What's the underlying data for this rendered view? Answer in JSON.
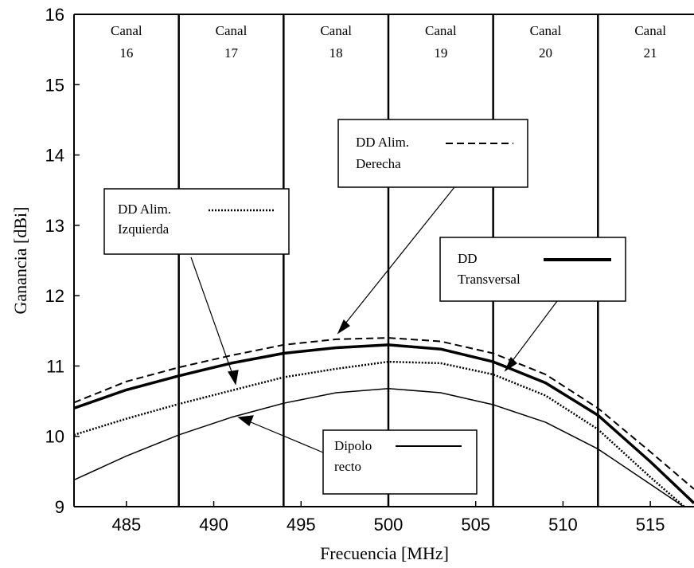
{
  "chart_data": {
    "type": "line",
    "title": "",
    "xlabel": "Frecuencia [MHz]",
    "ylabel": "Ganancia [dBi]",
    "xlim": [
      482,
      517.5
    ],
    "ylim": [
      9,
      16
    ],
    "xticks": [
      485,
      490,
      495,
      500,
      505,
      510,
      515
    ],
    "yticks": [
      9,
      10,
      11,
      12,
      13,
      14,
      15,
      16
    ],
    "grid": false,
    "channel_boundaries_mhz": [
      488,
      494,
      500,
      506,
      512
    ],
    "channels": [
      {
        "label": "Canal",
        "number": "16",
        "center_mhz": 485
      },
      {
        "label": "Canal",
        "number": "17",
        "center_mhz": 491
      },
      {
        "label": "Canal",
        "number": "18",
        "center_mhz": 497
      },
      {
        "label": "Canal",
        "number": "19",
        "center_mhz": 503
      },
      {
        "label": "Canal",
        "number": "20",
        "center_mhz": 509
      },
      {
        "label": "Canal",
        "number": "21",
        "center_mhz": 515
      }
    ],
    "series": [
      {
        "name": "DD Alim. Derecha",
        "style": "dashed",
        "x": [
          482,
          485,
          488,
          491,
          494,
          497,
          500,
          503,
          506,
          509,
          512,
          515,
          517.5
        ],
        "y": [
          10.48,
          10.78,
          10.98,
          11.15,
          11.3,
          11.38,
          11.4,
          11.35,
          11.18,
          10.88,
          10.4,
          9.78,
          9.25
        ]
      },
      {
        "name": "DD Transversal",
        "style": "thick",
        "x": [
          482,
          485,
          488,
          491,
          494,
          497,
          500,
          503,
          506,
          509,
          512,
          515,
          517.5
        ],
        "y": [
          10.4,
          10.66,
          10.86,
          11.04,
          11.18,
          11.26,
          11.3,
          11.24,
          11.06,
          10.76,
          10.3,
          9.64,
          9.05
        ]
      },
      {
        "name": "DD Alim. Izquierda",
        "style": "dotted",
        "x": [
          482,
          485,
          488,
          491,
          494,
          497,
          500,
          503,
          506,
          509,
          512,
          515,
          517.5
        ],
        "y": [
          10.02,
          10.25,
          10.46,
          10.65,
          10.84,
          10.96,
          11.06,
          11.04,
          10.88,
          10.58,
          10.1,
          9.42,
          8.88
        ]
      },
      {
        "name": "Dipolo recto",
        "style": "solid",
        "x": [
          482,
          485,
          488,
          491,
          494,
          497,
          500,
          503,
          506,
          509,
          512,
          515,
          517.5
        ],
        "y": [
          9.38,
          9.72,
          10.02,
          10.27,
          10.47,
          10.62,
          10.68,
          10.62,
          10.45,
          10.2,
          9.82,
          9.32,
          8.9
        ]
      }
    ],
    "legends": [
      {
        "text1": "DD Alim.",
        "text2": "Derecha",
        "series": 0
      },
      {
        "text1": "DD",
        "text2": "Transversal",
        "series": 1
      },
      {
        "text1": "DD Alim.",
        "text2": "Izquierda",
        "series": 2
      },
      {
        "text1": "Dipolo",
        "text2": "recto",
        "series": 3
      }
    ]
  }
}
